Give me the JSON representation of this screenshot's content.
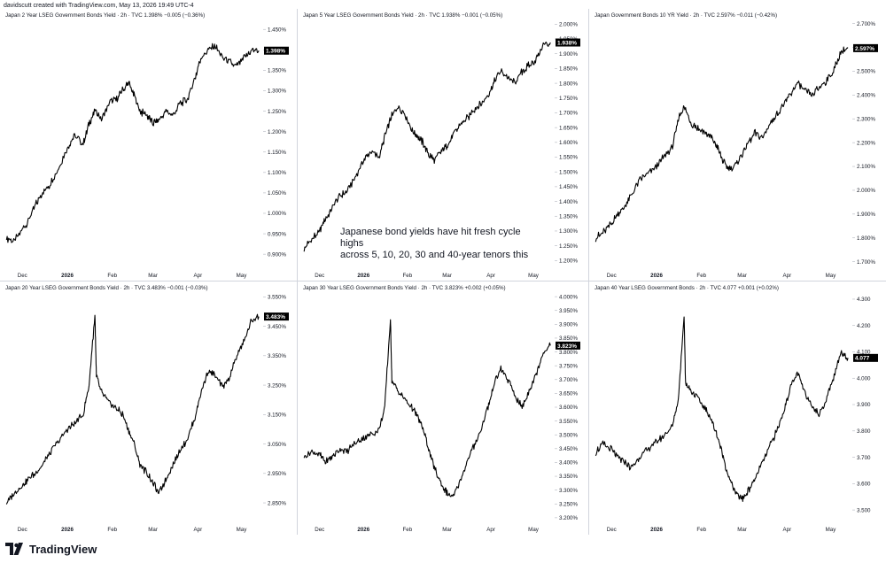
{
  "header": {
    "text": "davidscutt created with TradingView.com, May 13, 2026 19:49 UTC-4"
  },
  "annotation": {
    "line1": "Japanese bond yields have hit fresh cycle highs",
    "line2": "across 5, 10, 20, 30 and 40-year tenors this"
  },
  "footer": {
    "brand": "TradingView"
  },
  "x_axis_labels": [
    "Dec",
    "2026",
    "Feb",
    "Mar",
    "Apr",
    "May"
  ],
  "colors": {
    "line": "#000000",
    "last_value_bg": "#000000",
    "grid": "#d1d4dc"
  },
  "chart_data": [
    {
      "type": "line",
      "title": "Japan 2 Year LSEG Government Bonds Yield · 2h · TVC  1.398%  −0.005 (−0.36%)",
      "last_value": "1.398%",
      "yticks": [
        "1.450%",
        "1.400%",
        "1.350%",
        "1.300%",
        "1.250%",
        "1.200%",
        "1.150%",
        "1.100%",
        "1.050%",
        "1.000%",
        "0.950%",
        "0.900%"
      ],
      "ylim": [
        0.87,
        1.47
      ],
      "x": [
        "2025-11-20",
        "2025-11-25",
        "2025-12-01",
        "2025-12-05",
        "2025-12-10",
        "2025-12-15",
        "2025-12-20",
        "2025-12-26",
        "2026-01-01",
        "2026-01-06",
        "2026-01-12",
        "2026-01-16",
        "2026-01-20",
        "2026-01-25",
        "2026-01-30",
        "2026-02-04",
        "2026-02-08",
        "2026-02-12",
        "2026-02-16",
        "2026-02-20",
        "2026-02-25",
        "2026-03-01",
        "2026-03-05",
        "2026-03-10",
        "2026-03-15",
        "2026-03-20",
        "2026-03-25",
        "2026-03-30",
        "2026-04-03",
        "2026-04-08",
        "2026-04-13",
        "2026-04-18",
        "2026-04-23",
        "2026-04-28",
        "2026-05-03",
        "2026-05-08",
        "2026-05-13"
      ],
      "values": [
        0.94,
        0.93,
        0.96,
        0.98,
        1.02,
        1.05,
        1.07,
        1.11,
        1.16,
        1.19,
        1.17,
        1.22,
        1.25,
        1.23,
        1.27,
        1.28,
        1.3,
        1.32,
        1.29,
        1.25,
        1.24,
        1.22,
        1.23,
        1.25,
        1.24,
        1.27,
        1.28,
        1.33,
        1.38,
        1.4,
        1.41,
        1.38,
        1.37,
        1.36,
        1.38,
        1.4,
        1.398
      ]
    },
    {
      "type": "line",
      "title": "Japan 5 Year LSEG Government Bonds Yield · 2h · TVC  1.938%  −0.001 (−0.05%)",
      "last_value": "1.938%",
      "yticks": [
        "2.000%",
        "1.950%",
        "1.900%",
        "1.850%",
        "1.800%",
        "1.750%",
        "1.700%",
        "1.650%",
        "1.600%",
        "1.550%",
        "1.500%",
        "1.450%",
        "1.400%",
        "1.350%",
        "1.300%",
        "1.250%",
        "1.200%"
      ],
      "ylim": [
        1.18,
        2.01
      ],
      "x": [
        "2025-11-20",
        "2025-11-25",
        "2025-12-01",
        "2025-12-05",
        "2025-12-10",
        "2025-12-15",
        "2025-12-20",
        "2025-12-26",
        "2026-01-01",
        "2026-01-06",
        "2026-01-12",
        "2026-01-16",
        "2026-01-20",
        "2026-01-25",
        "2026-01-30",
        "2026-02-04",
        "2026-02-08",
        "2026-02-12",
        "2026-02-16",
        "2026-02-20",
        "2026-02-25",
        "2026-03-01",
        "2026-03-05",
        "2026-03-10",
        "2026-03-15",
        "2026-03-20",
        "2026-03-25",
        "2026-03-30",
        "2026-04-03",
        "2026-04-08",
        "2026-04-13",
        "2026-04-18",
        "2026-04-23",
        "2026-04-28",
        "2026-05-03",
        "2026-05-08",
        "2026-05-13"
      ],
      "values": [
        1.24,
        1.27,
        1.3,
        1.34,
        1.38,
        1.42,
        1.43,
        1.48,
        1.54,
        1.57,
        1.55,
        1.62,
        1.68,
        1.72,
        1.7,
        1.64,
        1.62,
        1.6,
        1.56,
        1.54,
        1.57,
        1.59,
        1.62,
        1.66,
        1.68,
        1.71,
        1.73,
        1.76,
        1.8,
        1.84,
        1.82,
        1.8,
        1.84,
        1.86,
        1.88,
        1.93,
        1.938
      ]
    },
    {
      "type": "line",
      "title": "Japan Government Bonds 10 YR Yield · 2h · TVC  2.597%  −0.011 (−0.42%)",
      "last_value": "2.597%",
      "yticks": [
        "2.700%",
        "2.600%",
        "2.500%",
        "2.400%",
        "2.300%",
        "2.200%",
        "2.100%",
        "2.000%",
        "1.900%",
        "1.800%",
        "1.700%"
      ],
      "ylim": [
        1.68,
        2.71
      ],
      "x": [
        "2025-11-20",
        "2025-11-25",
        "2025-12-01",
        "2025-12-05",
        "2025-12-10",
        "2025-12-15",
        "2025-12-20",
        "2025-12-26",
        "2026-01-01",
        "2026-01-06",
        "2026-01-12",
        "2026-01-16",
        "2026-01-20",
        "2026-01-25",
        "2026-01-30",
        "2026-02-04",
        "2026-02-08",
        "2026-02-12",
        "2026-02-16",
        "2026-02-20",
        "2026-02-25",
        "2026-03-01",
        "2026-03-05",
        "2026-03-10",
        "2026-03-15",
        "2026-03-20",
        "2026-03-25",
        "2026-03-30",
        "2026-04-03",
        "2026-04-08",
        "2026-04-13",
        "2026-04-18",
        "2026-04-23",
        "2026-04-28",
        "2026-05-03",
        "2026-05-08",
        "2026-05-13"
      ],
      "values": [
        1.8,
        1.82,
        1.86,
        1.9,
        1.93,
        1.98,
        2.04,
        2.07,
        2.1,
        2.14,
        2.18,
        2.3,
        2.35,
        2.28,
        2.26,
        2.24,
        2.22,
        2.18,
        2.12,
        2.09,
        2.11,
        2.15,
        2.2,
        2.24,
        2.22,
        2.28,
        2.32,
        2.36,
        2.4,
        2.45,
        2.42,
        2.4,
        2.43,
        2.46,
        2.5,
        2.58,
        2.597
      ]
    },
    {
      "type": "line",
      "title": "Japan 20 Year LSEG Government Bonds Yield · 2h · TVC  3.483%  −0.001 (−0.03%)",
      "last_value": "3.483%",
      "yticks": [
        "3.550%",
        "3.450%",
        "3.350%",
        "3.250%",
        "3.150%",
        "3.050%",
        "2.950%",
        "2.850%"
      ],
      "ylim": [
        2.79,
        3.56
      ],
      "x": [
        "2025-11-20",
        "2025-11-25",
        "2025-12-01",
        "2025-12-05",
        "2025-12-10",
        "2025-12-15",
        "2025-12-20",
        "2025-12-26",
        "2026-01-01",
        "2026-01-06",
        "2026-01-12",
        "2026-01-16",
        "2026-01-20",
        "2026-01-21",
        "2026-01-25",
        "2026-01-30",
        "2026-02-04",
        "2026-02-08",
        "2026-02-12",
        "2026-02-16",
        "2026-02-20",
        "2026-02-25",
        "2026-03-01",
        "2026-03-05",
        "2026-03-10",
        "2026-03-15",
        "2026-03-20",
        "2026-03-25",
        "2026-03-30",
        "2026-04-03",
        "2026-04-08",
        "2026-04-13",
        "2026-04-18",
        "2026-04-23",
        "2026-04-28",
        "2026-05-03",
        "2026-05-08",
        "2026-05-13"
      ],
      "values": [
        2.85,
        2.88,
        2.91,
        2.93,
        2.95,
        2.98,
        3.02,
        3.06,
        3.1,
        3.12,
        3.15,
        3.25,
        3.49,
        3.28,
        3.22,
        3.19,
        3.17,
        3.15,
        3.1,
        3.05,
        2.98,
        2.95,
        2.92,
        2.88,
        2.93,
        2.98,
        3.03,
        3.07,
        3.14,
        3.22,
        3.3,
        3.28,
        3.24,
        3.28,
        3.35,
        3.4,
        3.47,
        3.483
      ]
    },
    {
      "type": "line",
      "title": "Japan 30 Year LSEG Government Bonds Yield · 2h · TVC  3.823%  +0.002 (+0.05%)",
      "last_value": "3.823%",
      "yticks": [
        "4.000%",
        "3.950%",
        "3.900%",
        "3.850%",
        "3.800%",
        "3.750%",
        "3.700%",
        "3.650%",
        "3.600%",
        "3.550%",
        "3.500%",
        "3.450%",
        "3.400%",
        "3.350%",
        "3.300%",
        "3.250%",
        "3.200%"
      ],
      "ylim": [
        3.19,
        4.01
      ],
      "x": [
        "2025-11-20",
        "2025-11-25",
        "2025-12-01",
        "2025-12-05",
        "2025-12-10",
        "2025-12-15",
        "2025-12-20",
        "2025-12-26",
        "2026-01-01",
        "2026-01-06",
        "2026-01-12",
        "2026-01-16",
        "2026-01-20",
        "2026-01-21",
        "2026-01-25",
        "2026-01-30",
        "2026-02-04",
        "2026-02-08",
        "2026-02-12",
        "2026-02-16",
        "2026-02-20",
        "2026-02-25",
        "2026-03-01",
        "2026-03-05",
        "2026-03-10",
        "2026-03-15",
        "2026-03-20",
        "2026-03-25",
        "2026-03-30",
        "2026-04-03",
        "2026-04-08",
        "2026-04-13",
        "2026-04-18",
        "2026-04-23",
        "2026-04-28",
        "2026-05-03",
        "2026-05-08",
        "2026-05-13"
      ],
      "values": [
        3.42,
        3.44,
        3.43,
        3.4,
        3.42,
        3.45,
        3.44,
        3.47,
        3.49,
        3.5,
        3.52,
        3.6,
        3.92,
        3.7,
        3.66,
        3.63,
        3.6,
        3.57,
        3.52,
        3.45,
        3.38,
        3.32,
        3.29,
        3.27,
        3.33,
        3.4,
        3.46,
        3.52,
        3.6,
        3.68,
        3.74,
        3.7,
        3.64,
        3.6,
        3.66,
        3.72,
        3.8,
        3.823
      ]
    },
    {
      "type": "line",
      "title": "Japan 40 Year LSEG Government Bonds · 2h · TVC  4.077  +0.001 (+0.02%)",
      "last_value": "4.077",
      "yticks": [
        "4.300",
        "4.200",
        "4.100",
        "4.000",
        "3.900",
        "3.800",
        "3.700",
        "3.600",
        "3.500"
      ],
      "ylim": [
        3.46,
        4.32
      ],
      "x": [
        "2025-11-20",
        "2025-11-25",
        "2025-12-01",
        "2025-12-05",
        "2025-12-10",
        "2025-12-15",
        "2025-12-20",
        "2025-12-26",
        "2026-01-01",
        "2026-01-06",
        "2026-01-12",
        "2026-01-16",
        "2026-01-20",
        "2026-01-21",
        "2026-01-25",
        "2026-01-30",
        "2026-02-04",
        "2026-02-08",
        "2026-02-12",
        "2026-02-16",
        "2026-02-20",
        "2026-02-25",
        "2026-03-01",
        "2026-03-05",
        "2026-03-10",
        "2026-03-15",
        "2026-03-20",
        "2026-03-25",
        "2026-03-30",
        "2026-04-03",
        "2026-04-08",
        "2026-04-13",
        "2026-04-18",
        "2026-04-23",
        "2026-04-28",
        "2026-05-03",
        "2026-05-08",
        "2026-05-13"
      ],
      "values": [
        3.72,
        3.75,
        3.73,
        3.7,
        3.68,
        3.66,
        3.7,
        3.73,
        3.76,
        3.78,
        3.82,
        3.92,
        4.24,
        3.98,
        3.95,
        3.92,
        3.88,
        3.84,
        3.78,
        3.7,
        3.62,
        3.56,
        3.54,
        3.57,
        3.62,
        3.68,
        3.74,
        3.8,
        3.88,
        3.96,
        4.02,
        3.95,
        3.9,
        3.86,
        3.92,
        4.0,
        4.1,
        4.077
      ]
    }
  ]
}
